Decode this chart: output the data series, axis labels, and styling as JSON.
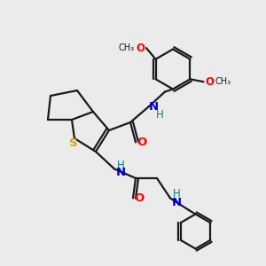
{
  "background_color": "#ebebeb",
  "bond_color": "#1a1a1a",
  "bond_width": 1.6,
  "atom_colors": {
    "O": "#ff0000",
    "N": "#0000cd",
    "S": "#ccaa00",
    "H_teal": "#008080",
    "C": "#1a1a1a"
  },
  "figsize": [
    3.0,
    3.0
  ],
  "dpi": 100,
  "xlim": [
    0,
    10
  ],
  "ylim": [
    0,
    10
  ]
}
